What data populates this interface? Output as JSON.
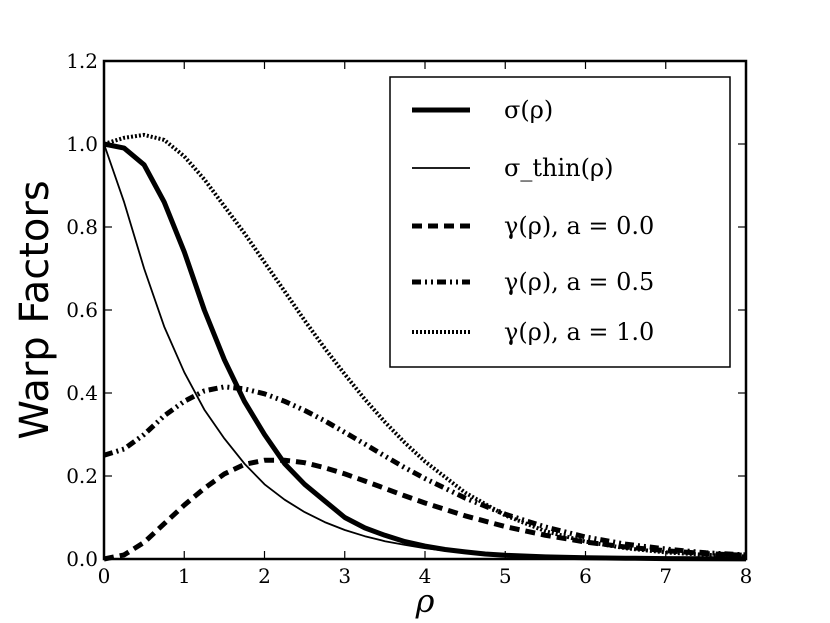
{
  "chart_data": {
    "type": "line",
    "xlabel": "ρ",
    "ylabel": "Warp Factors",
    "xlim": [
      0,
      8
    ],
    "ylim": [
      0,
      1.2
    ],
    "xticks": [
      "0",
      "1",
      "2",
      "3",
      "4",
      "5",
      "6",
      "7",
      "8"
    ],
    "yticks": [
      "0.0",
      "0.2",
      "0.4",
      "0.6",
      "0.8",
      "1.0",
      "1.2"
    ],
    "grid": false,
    "legend_position": "top-right",
    "series": [
      {
        "name": "σ(ρ)",
        "style": "thick-solid",
        "x": [
          0,
          0.25,
          0.5,
          0.75,
          1.0,
          1.25,
          1.5,
          1.75,
          2.0,
          2.25,
          2.5,
          2.75,
          3.0,
          3.25,
          3.5,
          3.75,
          4.0,
          4.25,
          4.5,
          4.75,
          5.0,
          5.5,
          6.0,
          6.5,
          7.0,
          7.5,
          8.0
        ],
        "y": [
          1.0,
          0.99,
          0.95,
          0.86,
          0.74,
          0.6,
          0.48,
          0.38,
          0.3,
          0.23,
          0.18,
          0.14,
          0.1,
          0.075,
          0.057,
          0.042,
          0.031,
          0.023,
          0.017,
          0.012,
          0.009,
          0.005,
          0.003,
          0.002,
          0.001,
          0.0005,
          0.0002
        ]
      },
      {
        "name": "σ_thin(ρ)",
        "style": "thin-solid",
        "x": [
          0,
          0.25,
          0.5,
          0.75,
          1.0,
          1.25,
          1.5,
          1.75,
          2.0,
          2.25,
          2.5,
          2.75,
          3.0,
          3.25,
          3.5,
          3.75,
          4.0,
          4.25,
          4.5,
          4.75,
          5.0,
          5.5,
          6.0,
          6.5,
          7.0,
          7.5,
          8.0
        ],
        "y": [
          1.0,
          0.86,
          0.7,
          0.56,
          0.45,
          0.36,
          0.29,
          0.23,
          0.18,
          0.143,
          0.113,
          0.089,
          0.07,
          0.055,
          0.043,
          0.034,
          0.026,
          0.02,
          0.016,
          0.012,
          0.009,
          0.006,
          0.003,
          0.002,
          0.001,
          0.0007,
          0.0004
        ]
      },
      {
        "name": "γ(ρ),   a = 0.0",
        "style": "dashed",
        "x": [
          0,
          0.25,
          0.5,
          0.75,
          1.0,
          1.25,
          1.5,
          1.75,
          2.0,
          2.25,
          2.5,
          2.75,
          3.0,
          3.25,
          3.5,
          3.75,
          4.0,
          4.5,
          5.0,
          5.5,
          6.0,
          6.5,
          7.0,
          7.5,
          8.0
        ],
        "y": [
          0.0,
          0.01,
          0.04,
          0.085,
          0.13,
          0.17,
          0.205,
          0.228,
          0.238,
          0.238,
          0.232,
          0.22,
          0.205,
          0.188,
          0.17,
          0.152,
          0.135,
          0.104,
          0.078,
          0.057,
          0.041,
          0.029,
          0.02,
          0.013,
          0.009
        ]
      },
      {
        "name": "γ(ρ),   a = 0.5",
        "style": "dash-dot-dot",
        "x": [
          0,
          0.25,
          0.5,
          0.75,
          1.0,
          1.25,
          1.5,
          1.75,
          2.0,
          2.25,
          2.5,
          2.75,
          3.0,
          3.25,
          3.5,
          3.75,
          4.0,
          4.5,
          5.0,
          5.5,
          6.0,
          6.5,
          7.0,
          7.5,
          8.0
        ],
        "y": [
          0.25,
          0.265,
          0.3,
          0.345,
          0.38,
          0.405,
          0.415,
          0.41,
          0.398,
          0.38,
          0.358,
          0.333,
          0.305,
          0.277,
          0.248,
          0.22,
          0.194,
          0.147,
          0.108,
          0.077,
          0.053,
          0.036,
          0.024,
          0.015,
          0.01
        ]
      },
      {
        "name": "γ(ρ),   a = 1.0",
        "style": "dotted",
        "x": [
          0,
          0.25,
          0.5,
          0.75,
          1.0,
          1.25,
          1.5,
          1.75,
          2.0,
          2.25,
          2.5,
          2.75,
          3.0,
          3.25,
          3.5,
          3.75,
          4.0,
          4.5,
          5.0,
          5.5,
          6.0,
          6.5,
          7.0,
          7.5,
          8.0
        ],
        "y": [
          1.0,
          1.015,
          1.022,
          1.01,
          0.97,
          0.915,
          0.85,
          0.785,
          0.715,
          0.645,
          0.575,
          0.508,
          0.445,
          0.385,
          0.33,
          0.28,
          0.235,
          0.16,
          0.105,
          0.067,
          0.042,
          0.026,
          0.016,
          0.01,
          0.006
        ]
      }
    ]
  }
}
